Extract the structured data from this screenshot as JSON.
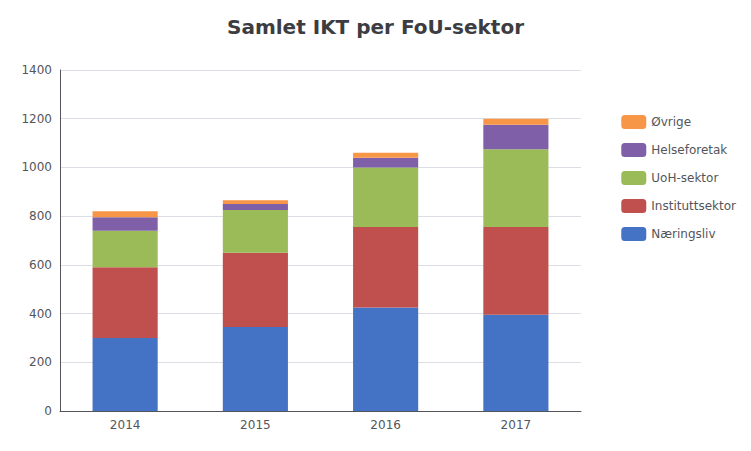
{
  "chart_data": {
    "type": "bar",
    "title": "Samlet IKT per FoU-sektor",
    "categories": [
      "2014",
      "2015",
      "2016",
      "2017"
    ],
    "series": [
      {
        "name": "Næringsliv",
        "color": "#4472C4",
        "values": [
          300,
          345,
          425,
          395
        ]
      },
      {
        "name": "Instituttsektor",
        "color": "#C0504D",
        "values": [
          290,
          305,
          330,
          360
        ]
      },
      {
        "name": "UoH-sektor",
        "color": "#9BBB59",
        "values": [
          150,
          175,
          245,
          320
        ]
      },
      {
        "name": "Helseforetak",
        "color": "#7F5FA8",
        "values": [
          55,
          25,
          40,
          100
        ]
      },
      {
        "name": "Øvrige",
        "color": "#F79646",
        "values": [
          25,
          15,
          20,
          25
        ]
      }
    ],
    "ylim": [
      0,
      1400
    ],
    "yticks": [
      0,
      200,
      400,
      600,
      800,
      1000,
      1200,
      1400
    ],
    "grid": true,
    "stacked": true,
    "legend": "right"
  }
}
